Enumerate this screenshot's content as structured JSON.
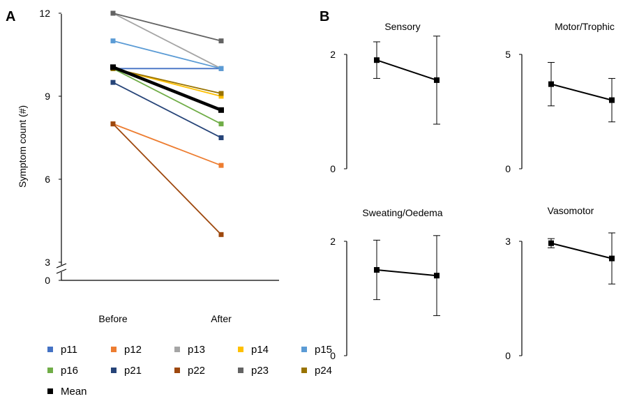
{
  "panel_letters": {
    "a": "A",
    "b": "B"
  },
  "chart_data": [
    {
      "type": "line",
      "panel": "A",
      "ylabel": "Symptom count (#)",
      "categories": [
        "Before",
        "After"
      ],
      "yticks": [
        "0",
        "3",
        "6",
        "9",
        "12"
      ],
      "ylim": [
        0,
        12
      ],
      "axis_break": true,
      "series": [
        {
          "name": "p11",
          "color": "#4472C4",
          "values": [
            10,
            10
          ]
        },
        {
          "name": "p12",
          "color": "#ED7D31",
          "values": [
            8,
            6.5
          ]
        },
        {
          "name": "p13",
          "color": "#A5A5A5",
          "values": [
            12,
            10
          ]
        },
        {
          "name": "p14",
          "color": "#FFC000",
          "values": [
            10,
            9
          ]
        },
        {
          "name": "p15",
          "color": "#5B9BD5",
          "values": [
            11,
            10
          ]
        },
        {
          "name": "p16",
          "color": "#70AD47",
          "values": [
            10,
            8
          ]
        },
        {
          "name": "p21",
          "color": "#264478",
          "values": [
            9.5,
            7.5
          ]
        },
        {
          "name": "p22",
          "color": "#9E480E",
          "values": [
            8,
            4
          ]
        },
        {
          "name": "p23",
          "color": "#636363",
          "values": [
            12,
            11
          ]
        },
        {
          "name": "p24",
          "color": "#997300",
          "values": [
            10,
            9.1
          ]
        },
        {
          "name": "Mean",
          "color": "#000000",
          "values": [
            10.05,
            8.5
          ]
        }
      ],
      "legend_placement": "bottom"
    },
    {
      "type": "line",
      "panel": "B",
      "title": "Sensory",
      "ylim": [
        0,
        2
      ],
      "yticks": [
        "0",
        "2"
      ],
      "series": [
        {
          "values": [
            1.9,
            1.55
          ],
          "error": [
            0.32,
            0.77
          ]
        }
      ]
    },
    {
      "type": "line",
      "panel": "B",
      "title": "Motor/Trophic",
      "ylim": [
        0,
        5
      ],
      "yticks": [
        "0",
        "5"
      ],
      "series": [
        {
          "values": [
            3.7,
            3.0
          ],
          "error": [
            0.95,
            0.95
          ]
        }
      ]
    },
    {
      "type": "line",
      "panel": "B",
      "title": "Sweating/Oedema",
      "ylim": [
        0,
        2
      ],
      "yticks": [
        "0",
        "2"
      ],
      "series": [
        {
          "values": [
            1.5,
            1.4
          ],
          "error": [
            0.52,
            0.7
          ]
        }
      ]
    },
    {
      "type": "line",
      "panel": "B",
      "title": "Vasomotor",
      "ylim": [
        0,
        3
      ],
      "yticks": [
        "0",
        "3"
      ],
      "series": [
        {
          "values": [
            2.95,
            2.55
          ],
          "error": [
            0.12,
            0.67
          ]
        }
      ]
    }
  ]
}
